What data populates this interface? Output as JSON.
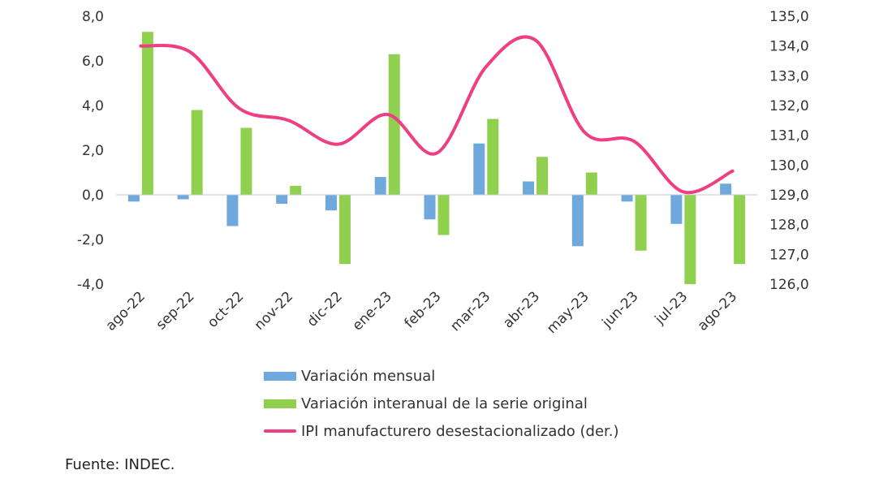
{
  "chart_data": {
    "type": "bar",
    "categories": [
      "ago-22",
      "sep-22",
      "oct-22",
      "nov-22",
      "dic-22",
      "ene-23",
      "feb-23",
      "mar-23",
      "abr-23",
      "may-23",
      "jun-23",
      "jul-23",
      "ago-23"
    ],
    "series": [
      {
        "name": "Variación mensual",
        "type": "bar",
        "axis": "left",
        "color": "#6fa8dc",
        "values": [
          -0.3,
          -0.2,
          -1.4,
          -0.4,
          -0.7,
          0.8,
          -1.1,
          2.3,
          0.6,
          -2.3,
          -0.3,
          -1.3,
          0.5
        ]
      },
      {
        "name": "Variación interanual de la serie original",
        "type": "bar",
        "axis": "left",
        "color": "#8fd14f",
        "values": [
          7.3,
          3.8,
          3.0,
          0.4,
          -3.1,
          6.3,
          -1.8,
          3.4,
          1.7,
          1.0,
          -2.5,
          -4.0,
          -3.1
        ]
      },
      {
        "name": "IPI manufacturero desestacionalizado (der.)",
        "type": "line",
        "axis": "right",
        "color": "#ef3f83",
        "values": [
          134.0,
          133.8,
          131.9,
          131.5,
          130.7,
          131.7,
          130.4,
          133.3,
          134.2,
          131.1,
          130.8,
          129.1,
          129.8
        ]
      }
    ],
    "y_left": {
      "min": -4,
      "max": 8,
      "ticks": [
        "8,0",
        "6,0",
        "4,0",
        "2,0",
        "0,0",
        "-2,0",
        "-4,0"
      ]
    },
    "y_right": {
      "min": 126,
      "max": 135,
      "ticks": [
        "135,0",
        "134,0",
        "133,0",
        "132,0",
        "131,0",
        "130,0",
        "129,0",
        "128,0",
        "127,0",
        "126,0"
      ]
    },
    "grid": false,
    "legend_position": "bottom"
  },
  "source": "Fuente: INDEC."
}
